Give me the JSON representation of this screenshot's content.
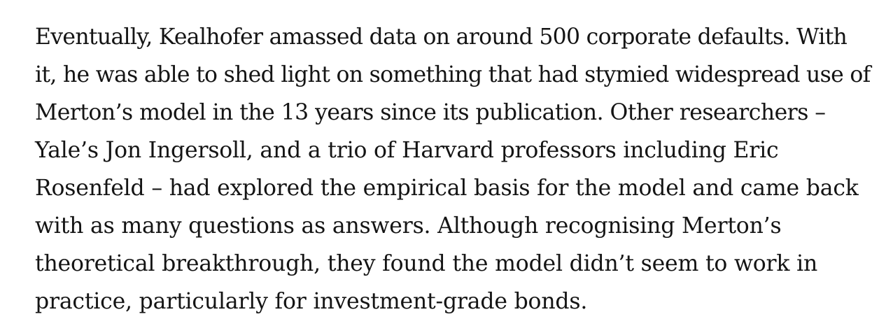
{
  "article": {
    "paragraph_lines": [
      "Eventually, Kealhofer amassed data on around 500 corporate defaults. With",
      "it, he was able to shed light on something that had stymied widespread use of",
      "Merton’s model in the 13 years since its publication. Other researchers –",
      "Yale’s Jon Ingersoll, and a trio of Harvard professors including Eric",
      "Rosenfeld – had explored the empirical basis for the model and came back",
      "with as many questions as answers. Although recognising Merton’s",
      "theoretical breakthrough, they found the model didn’t seem to work in",
      "practice, particularly for investment-grade bonds."
    ]
  }
}
